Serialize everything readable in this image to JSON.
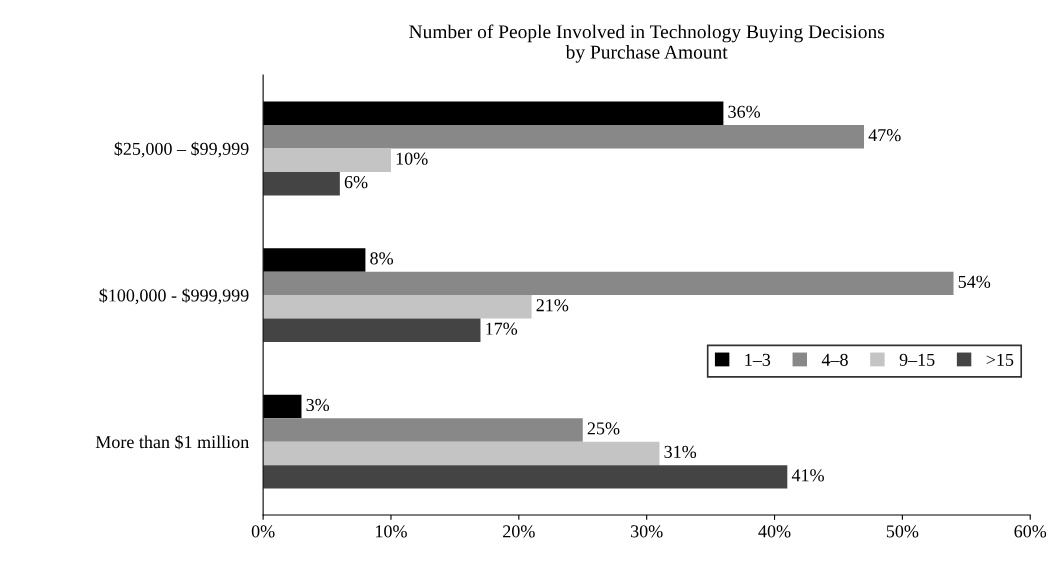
{
  "chart_data": {
    "type": "bar",
    "orientation": "horizontal",
    "title": "Number of People Involved in Technology Buying Decisions\nby Purchase Amount",
    "categories": [
      "$25,000 – $99,999",
      "$100,000 - $999,999",
      "More than $1 million"
    ],
    "series": [
      {
        "name": "1–3",
        "color": "#000000",
        "values": [
          36,
          8,
          3
        ],
        "value_labels": [
          "36%",
          "8%",
          "3%"
        ]
      },
      {
        "name": "4–8",
        "color": "#888888",
        "values": [
          47,
          54,
          25
        ],
        "value_labels": [
          "47%",
          "54%",
          "25%"
        ]
      },
      {
        "name": "9–15",
        "color": "#c4c4c4",
        "values": [
          10,
          21,
          31
        ],
        "value_labels": [
          "10%",
          "21%",
          "31%"
        ]
      },
      {
        "name": ">15",
        "color": "#444444",
        "values": [
          6,
          17,
          41
        ],
        "value_labels": [
          "6%",
          "17%",
          "41%"
        ]
      }
    ],
    "xlim": [
      0,
      60
    ],
    "xticks": [
      {
        "value": 0,
        "label": "0%"
      },
      {
        "value": 10,
        "label": "10%"
      },
      {
        "value": 20,
        "label": "20%"
      },
      {
        "value": 30,
        "label": "30%"
      },
      {
        "value": 40,
        "label": "40%"
      },
      {
        "value": 50,
        "label": "50%"
      },
      {
        "value": 60,
        "label": "60%"
      }
    ],
    "grid": false,
    "legend": "right"
  }
}
